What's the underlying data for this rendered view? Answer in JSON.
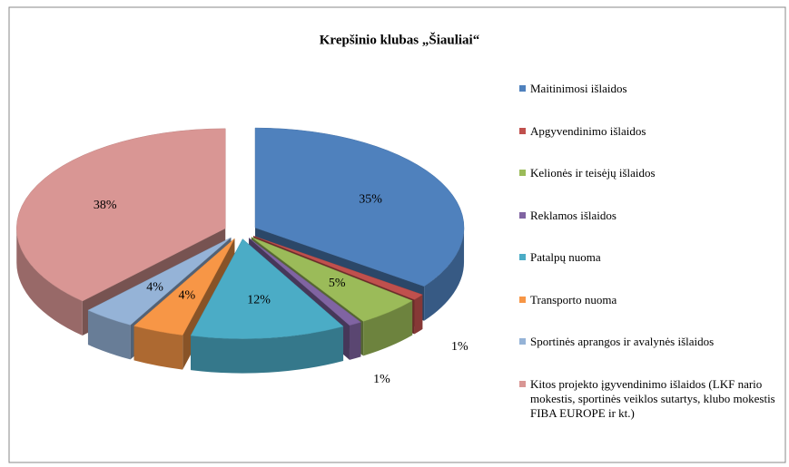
{
  "chart_data": {
    "type": "pie3d",
    "title": "Krepšinio klubas „Šiauliai“",
    "categories": [
      "Maitinimosi išlaidos",
      "Apgyvendinimo išlaidos",
      "Kelionės ir teisėjų išlaidos",
      "Reklamos išlaidos",
      "Patalpų nuoma",
      "Transporto nuoma",
      "Sportinės aprangos ir avalynės išlaidos",
      "Kitos projekto įgyvendinimo išlaidos (LKF nario mokestis, sportinės veiklos sutartys, klubo mokestis FIBA EUROPE ir kt.)"
    ],
    "values": [
      35,
      1,
      5,
      1,
      12,
      4,
      4,
      38
    ],
    "value_labels": [
      "35%",
      "1%",
      "5%",
      "1%",
      "12%",
      "4%",
      "4%",
      "38%"
    ],
    "colors": [
      "#4f81bd",
      "#c0504d",
      "#9bbb59",
      "#8064a2",
      "#4bacc6",
      "#f79646",
      "#95b3d7",
      "#d99694"
    ],
    "legend": "right"
  }
}
